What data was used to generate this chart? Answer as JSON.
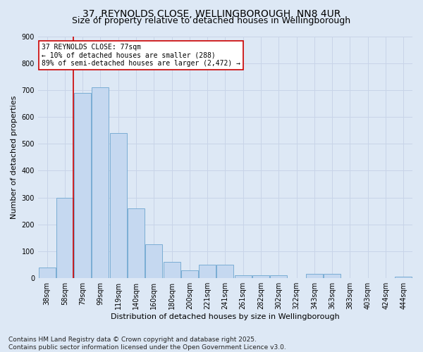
{
  "title_line1": "37, REYNOLDS CLOSE, WELLINGBOROUGH, NN8 4UR",
  "title_line2": "Size of property relative to detached houses in Wellingborough",
  "xlabel": "Distribution of detached houses by size in Wellingborough",
  "ylabel": "Number of detached properties",
  "categories": [
    "38sqm",
    "58sqm",
    "79sqm",
    "99sqm",
    "119sqm",
    "140sqm",
    "160sqm",
    "180sqm",
    "200sqm",
    "221sqm",
    "241sqm",
    "261sqm",
    "282sqm",
    "302sqm",
    "322sqm",
    "343sqm",
    "363sqm",
    "383sqm",
    "403sqm",
    "424sqm",
    "444sqm"
  ],
  "values": [
    40,
    300,
    690,
    710,
    540,
    260,
    125,
    60,
    30,
    50,
    50,
    10,
    10,
    10,
    0,
    15,
    15,
    0,
    0,
    0,
    5
  ],
  "bar_color": "#c5d8f0",
  "bar_edge_color": "#7aadd4",
  "vline_color": "#cc0000",
  "vline_x": 1.5,
  "annotation_line1": "37 REYNOLDS CLOSE: 77sqm",
  "annotation_line2": "← 10% of detached houses are smaller (288)",
  "annotation_line3": "89% of semi-detached houses are larger (2,472) →",
  "annotation_box_facecolor": "#ffffff",
  "annotation_box_edgecolor": "#cc0000",
  "ylim": [
    0,
    900
  ],
  "yticks": [
    0,
    100,
    200,
    300,
    400,
    500,
    600,
    700,
    800,
    900
  ],
  "grid_color": "#c8d4e8",
  "background_color": "#dde8f5",
  "footnote": "Contains HM Land Registry data © Crown copyright and database right 2025.\nContains public sector information licensed under the Open Government Licence v3.0.",
  "title_fontsize": 10,
  "subtitle_fontsize": 9,
  "axis_label_fontsize": 8,
  "tick_fontsize": 7,
  "annotation_fontsize": 7,
  "footnote_fontsize": 6.5
}
